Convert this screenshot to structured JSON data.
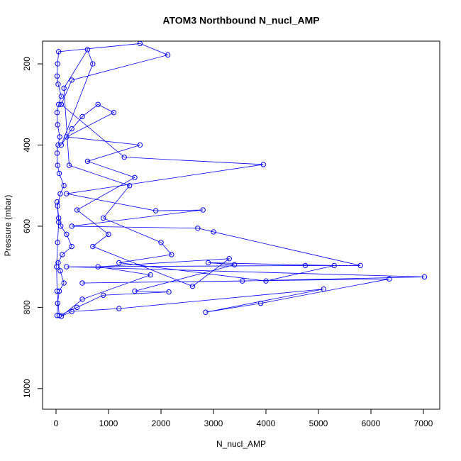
{
  "chart_data": {
    "type": "line",
    "title": "ATOM3 Northbound N_nucl_AMP",
    "x_label": "N_nucl_AMP",
    "y_label": "Pressure (mbar)",
    "xlim": [
      -257,
      7311
    ],
    "ylim": [
      1051,
      144
    ],
    "xticks": [
      0,
      1000,
      2000,
      3000,
      4000,
      5000,
      6000,
      7000
    ],
    "yticks": [
      200,
      400,
      600,
      800,
      1000
    ],
    "series": [
      {
        "color": "#0000ff",
        "x": [
          20,
          30,
          60,
          150,
          80,
          40,
          120,
          300,
          200,
          90,
          50,
          30,
          80,
          150,
          60,
          30,
          20,
          40,
          70,
          30,
          20,
          50,
          100,
          40,
          20,
          30,
          50,
          1600,
          2130,
          300,
          100,
          1300,
          3950,
          200,
          1900,
          2800,
          300,
          2700,
          3000,
          5800,
          4750,
          200,
          7020,
          3550,
          500,
          6350,
          3900,
          2850,
          5100,
          1200,
          300,
          100,
          500,
          1800,
          800,
          3300,
          2600,
          700,
          1000,
          400,
          1500,
          600,
          1600,
          200,
          1100,
          800,
          500,
          300,
          100,
          700,
          600,
          150,
          250,
          1400,
          900,
          2000,
          2200,
          1200,
          4000,
          5300,
          2900,
          3400,
          1500,
          2150,
          900,
          400,
          60,
          20,
          10,
          30,
          50,
          20
        ],
        "values": [
          820,
          790,
          760,
          740,
          710,
          690,
          670,
          650,
          620,
          600,
          580,
          550,
          520,
          500,
          470,
          450,
          420,
          400,
          380,
          350,
          320,
          300,
          280,
          250,
          230,
          200,
          170,
          150,
          178,
          240,
          300,
          430,
          448,
          520,
          562,
          560,
          600,
          605,
          614,
          697,
          697,
          700,
          725,
          735,
          740,
          730,
          790,
          812,
          755,
          803,
          810,
          822,
          780,
          720,
          700,
          680,
          748,
          650,
          620,
          560,
          480,
          440,
          400,
          380,
          320,
          300,
          330,
          360,
          400,
          200,
          165,
          260,
          450,
          500,
          580,
          640,
          670,
          690,
          735,
          697,
          690,
          695,
          760,
          762,
          770,
          800,
          820,
          760,
          700,
          640,
          590,
          540
        ]
      }
    ]
  }
}
